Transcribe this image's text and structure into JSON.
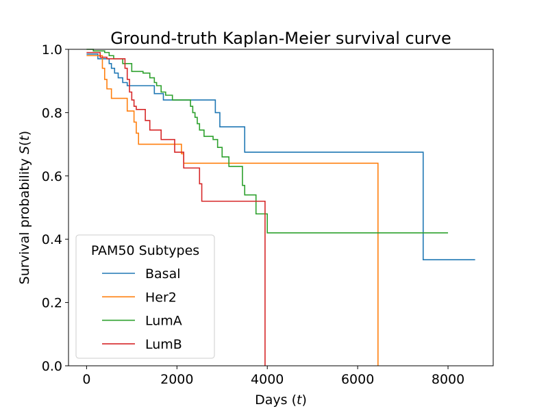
{
  "chart_data": {
    "type": "line",
    "title": "Ground-truth Kaplan-Meier survival curve",
    "xlabel_prefix": "Days (",
    "xlabel_var": "t",
    "xlabel_suffix": ")",
    "ylabel_prefix": "Survival probability ",
    "ylabel_var": "S",
    "ylabel_mid": "(",
    "ylabel_var2": "t",
    "ylabel_suffix": ")",
    "xlim": [
      -400,
      9000
    ],
    "ylim": [
      0,
      1
    ],
    "x_ticks": [
      0,
      2000,
      4000,
      6000,
      8000
    ],
    "x_tick_labels": [
      "0",
      "2000",
      "4000",
      "6000",
      "8000"
    ],
    "y_ticks": [
      0,
      0.2,
      0.4,
      0.6,
      0.8,
      1.0
    ],
    "y_tick_labels": [
      "0.0",
      "0.2",
      "0.4",
      "0.6",
      "0.8",
      "1.0"
    ],
    "grid": false,
    "legend": {
      "title": "PAM50 Subtypes",
      "placement": "lower-left"
    },
    "step": "post",
    "series": [
      {
        "name": "Basal",
        "color": "#1f77b4",
        "x": [
          0,
          250,
          350,
          500,
          550,
          620,
          700,
          800,
          900,
          1000,
          1500,
          1700,
          2850,
          2950,
          3500,
          7450,
          8600
        ],
        "y": [
          0.985,
          0.97,
          0.97,
          0.955,
          0.94,
          0.925,
          0.91,
          0.895,
          0.885,
          0.885,
          0.86,
          0.84,
          0.8,
          0.755,
          0.675,
          0.335,
          0.335
        ]
      },
      {
        "name": "Her2",
        "color": "#ff7f0e",
        "x": [
          0,
          350,
          400,
          450,
          550,
          900,
          1050,
          1100,
          1150,
          2100,
          2150,
          6450,
          6450
        ],
        "y": [
          0.98,
          0.94,
          0.905,
          0.875,
          0.845,
          0.805,
          0.77,
          0.735,
          0.7,
          0.67,
          0.64,
          0.64,
          0.0
        ]
      },
      {
        "name": "LumA",
        "color": "#2ca02c",
        "x": [
          0,
          150,
          400,
          500,
          600,
          800,
          1000,
          1250,
          1400,
          1500,
          1550,
          1650,
          1750,
          1900,
          2300,
          2350,
          2400,
          2450,
          2500,
          2600,
          2800,
          2900,
          3000,
          3150,
          3450,
          3500,
          3600,
          3750,
          4000,
          8000
        ],
        "y": [
          1.0,
          0.995,
          0.99,
          0.98,
          0.97,
          0.955,
          0.93,
          0.925,
          0.91,
          0.895,
          0.885,
          0.865,
          0.855,
          0.84,
          0.82,
          0.8,
          0.785,
          0.765,
          0.745,
          0.725,
          0.715,
          0.69,
          0.66,
          0.63,
          0.57,
          0.54,
          0.54,
          0.48,
          0.42,
          0.42
        ]
      },
      {
        "name": "LumB",
        "color": "#d62728",
        "x": [
          0,
          300,
          400,
          450,
          850,
          900,
          950,
          1000,
          1050,
          1100,
          1300,
          1400,
          1650,
          1950,
          2150,
          2500,
          2550,
          2550,
          3950,
          3950
        ],
        "y": [
          0.99,
          0.975,
          0.975,
          0.97,
          0.94,
          0.905,
          0.865,
          0.84,
          0.82,
          0.81,
          0.775,
          0.745,
          0.715,
          0.675,
          0.625,
          0.575,
          0.545,
          0.52,
          0.52,
          0.0
        ]
      }
    ]
  }
}
